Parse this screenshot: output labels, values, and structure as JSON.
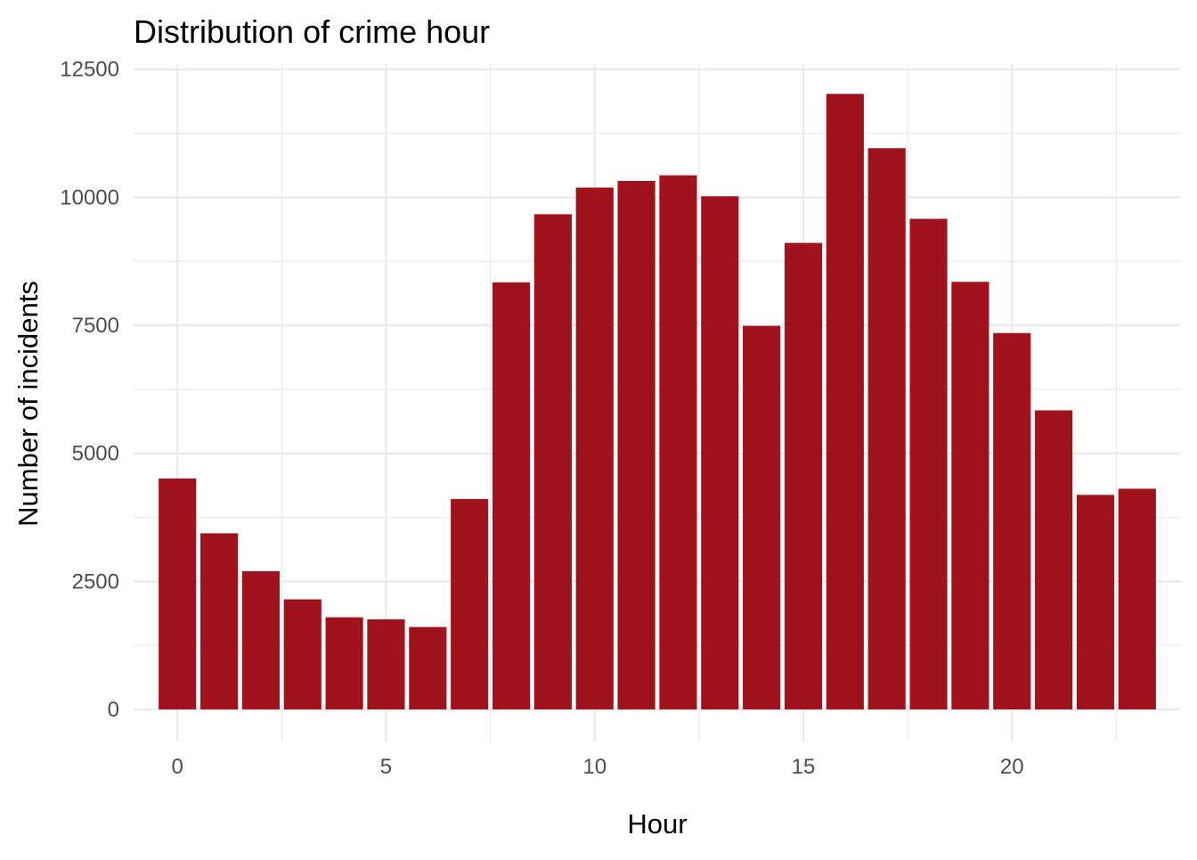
{
  "chart_data": {
    "type": "bar",
    "title": "Distribution of crime hour",
    "xlabel": "Hour",
    "ylabel": "Number of incidents",
    "x": [
      0,
      1,
      2,
      3,
      4,
      5,
      6,
      7,
      8,
      9,
      10,
      11,
      12,
      13,
      14,
      15,
      16,
      17,
      18,
      19,
      20,
      21,
      22,
      23
    ],
    "values": [
      4510,
      3440,
      2700,
      2150,
      1800,
      1760,
      1610,
      4110,
      8340,
      9670,
      10190,
      10320,
      10430,
      10020,
      7490,
      9110,
      12020,
      10960,
      9580,
      8350,
      7350,
      5840,
      4190,
      4310
    ],
    "xlim": [
      -0.5,
      23.5
    ],
    "ylim": [
      0,
      12500
    ],
    "x_ticks": [
      0,
      5,
      10,
      15,
      20
    ],
    "x_tick_labels": [
      "0",
      "5",
      "10",
      "15",
      "20"
    ],
    "y_ticks": [
      0,
      2500,
      5000,
      7500,
      10000,
      12500
    ],
    "y_tick_labels": [
      "0",
      "2500",
      "5000",
      "7500",
      "10000",
      "12500"
    ],
    "grid": true,
    "bar_color": "#a0131c",
    "grid_color": "#ebebeb",
    "text_color": "#4d4d4d"
  }
}
